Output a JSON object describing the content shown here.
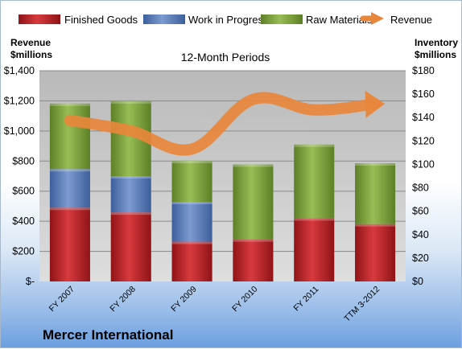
{
  "chart_data": {
    "type": "bar",
    "stacked": true,
    "title": "12-Month Periods",
    "categories": [
      "FY 2007",
      "FY 2008",
      "FY 2009",
      "FY 2010",
      "FY 2011",
      "TTM 3-2012"
    ],
    "series": [
      {
        "name": "Finished Goods",
        "axis": "right",
        "color": "#c0262b",
        "values": [
          63,
          59,
          34,
          36,
          54,
          49
        ]
      },
      {
        "name": "Work in Progress",
        "axis": "right",
        "color": "#5b7fbf",
        "values": [
          33,
          31,
          34,
          0,
          0,
          0
        ]
      },
      {
        "name": "Raw Materials",
        "axis": "right",
        "color": "#7fa63d",
        "values": [
          56,
          64,
          35,
          64,
          63,
          52
        ]
      },
      {
        "name": "Revenue",
        "type": "line",
        "axis": "left",
        "color": "#e8873b",
        "values": [
          1070,
          1000,
          880,
          1210,
          1140,
          1180
        ]
      }
    ],
    "y_left": {
      "label": "Revenue\n$millions",
      "ylim": [
        0,
        1400
      ],
      "ticks": [
        0,
        200,
        400,
        600,
        800,
        1000,
        1200,
        1400
      ],
      "tick_labels": [
        "$-",
        "$200",
        "$400",
        "$600",
        "$800",
        "$1,000",
        "$1,200",
        "$1,400"
      ]
    },
    "y_right": {
      "label": "Inventory\n$millions",
      "ylim": [
        0,
        180
      ],
      "ticks": [
        0,
        20,
        40,
        60,
        80,
        100,
        120,
        140,
        160,
        180
      ],
      "tick_labels": [
        "$0",
        "$20",
        "$40",
        "$60",
        "$80",
        "$100",
        "$120",
        "$140",
        "$160",
        "$180"
      ]
    },
    "legend": {
      "placement": "top"
    },
    "grid": true
  },
  "company": "Mercer International",
  "colors": {
    "plot_background": "#c8c8c8",
    "gridline": "#8a8a8a",
    "frame_border": "#a8b8cc"
  }
}
